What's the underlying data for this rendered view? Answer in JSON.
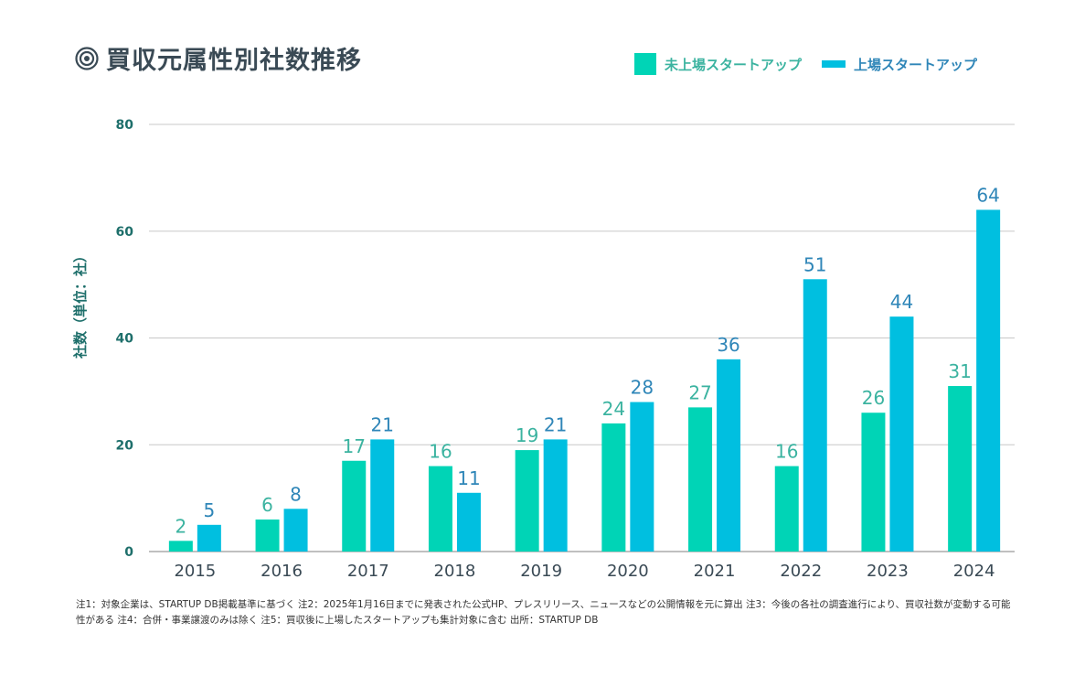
{
  "title": "買収元属性別社数推移",
  "legend": {
    "items": [
      {
        "label": "未上場スタートアップ",
        "color": "#00d4b6"
      },
      {
        "label": "上場スタートアップ",
        "color": "#00bfe0"
      }
    ]
  },
  "footnote": "注1：対象企業は、STARTUP DB掲載基準に基づく 注2：2025年1月16日までに発表された公式HP、プレスリリース、ニュースなどの公開情報を元に算出 注3：今後の各社の調査進行により、買収社数が変動する可能性がある 注4：合併・事業譲渡のみは除く 注5：買収後に上場したスタートアップも集計対象に含む 出所：STARTUP DB",
  "colors": {
    "title": "#3a4a55",
    "axis_label": "#1e6f6b",
    "unlisted": "#00d4b6",
    "listed": "#00bfe0",
    "unlisted_label": "#3bb3a0",
    "listed_label": "#2f86b8",
    "grid": "#c8c8c8"
  },
  "chart_data": {
    "type": "bar",
    "title": "買収元属性別社数推移",
    "ylabel": "社数（単位：社）",
    "xlabel": "",
    "categories": [
      "2015",
      "2016",
      "2017",
      "2018",
      "2019",
      "2020",
      "2021",
      "2022",
      "2023",
      "2024"
    ],
    "series": [
      {
        "name": "未上場スタートアップ",
        "values": [
          2,
          6,
          17,
          16,
          19,
          24,
          27,
          16,
          26,
          31
        ]
      },
      {
        "name": "上場スタートアップ",
        "values": [
          5,
          8,
          21,
          11,
          21,
          28,
          36,
          51,
          44,
          64
        ]
      }
    ],
    "ylim": [
      0,
      80
    ],
    "yticks": [
      0,
      20,
      40,
      60,
      80
    ],
    "grid": true,
    "legend_position": "top-right"
  }
}
